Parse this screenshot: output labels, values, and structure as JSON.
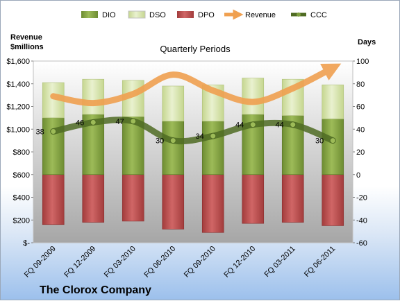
{
  "chart_data": {
    "type": "bar",
    "title": "Quarterly Periods",
    "company": "The Clorox Company",
    "left_axis_label": [
      "Revenue",
      "$millions"
    ],
    "right_axis_label": "Days",
    "categories": [
      "FQ 09-2009",
      "FQ 12-2009",
      "FQ 03-2010",
      "FQ 06-2010",
      "FQ 09-2010",
      "FQ 12-2010",
      "FQ 03-2011",
      "FQ 06-2011"
    ],
    "left_ticks": [
      "$-",
      "$200",
      "$400",
      "$600",
      "$800",
      "$1,000",
      "$1,200",
      "$1,400",
      "$1,600"
    ],
    "right_ticks": [
      "-60",
      "-40",
      "-20",
      "0",
      "20",
      "40",
      "60",
      "80",
      "100"
    ],
    "left_ylim": [
      0,
      1600
    ],
    "right_ylim": [
      -60,
      100
    ],
    "legend_position": "top",
    "series": [
      {
        "name": "DIO",
        "axis": "right",
        "kind": "stacked-bar",
        "color": "#7f9f3f",
        "values": [
          50,
          53,
          51,
          47,
          47,
          53,
          52,
          49
        ]
      },
      {
        "name": "DSO",
        "axis": "right",
        "kind": "stacked-bar",
        "color": "#d7e4b0",
        "values": [
          31,
          31,
          32,
          31,
          32,
          32,
          32,
          30
        ]
      },
      {
        "name": "DPO",
        "axis": "right",
        "kind": "bar",
        "color": "#b94a4a",
        "values": [
          -44,
          -42,
          -41,
          -48,
          -51,
          -43,
          -42,
          -45
        ]
      },
      {
        "name": "Revenue",
        "axis": "left",
        "kind": "line",
        "color": "#f0a050",
        "values": [
          1290,
          1230,
          1310,
          1480,
          1340,
          1240,
          1360,
          1540
        ]
      },
      {
        "name": "CCC",
        "axis": "right",
        "kind": "line",
        "color": "#4f6b23",
        "values": [
          38,
          46,
          47,
          30,
          34,
          44,
          44,
          30
        ]
      }
    ],
    "ccc_labels": [
      "38",
      "46",
      "47",
      "30",
      "34",
      "44",
      "44",
      "30"
    ]
  }
}
